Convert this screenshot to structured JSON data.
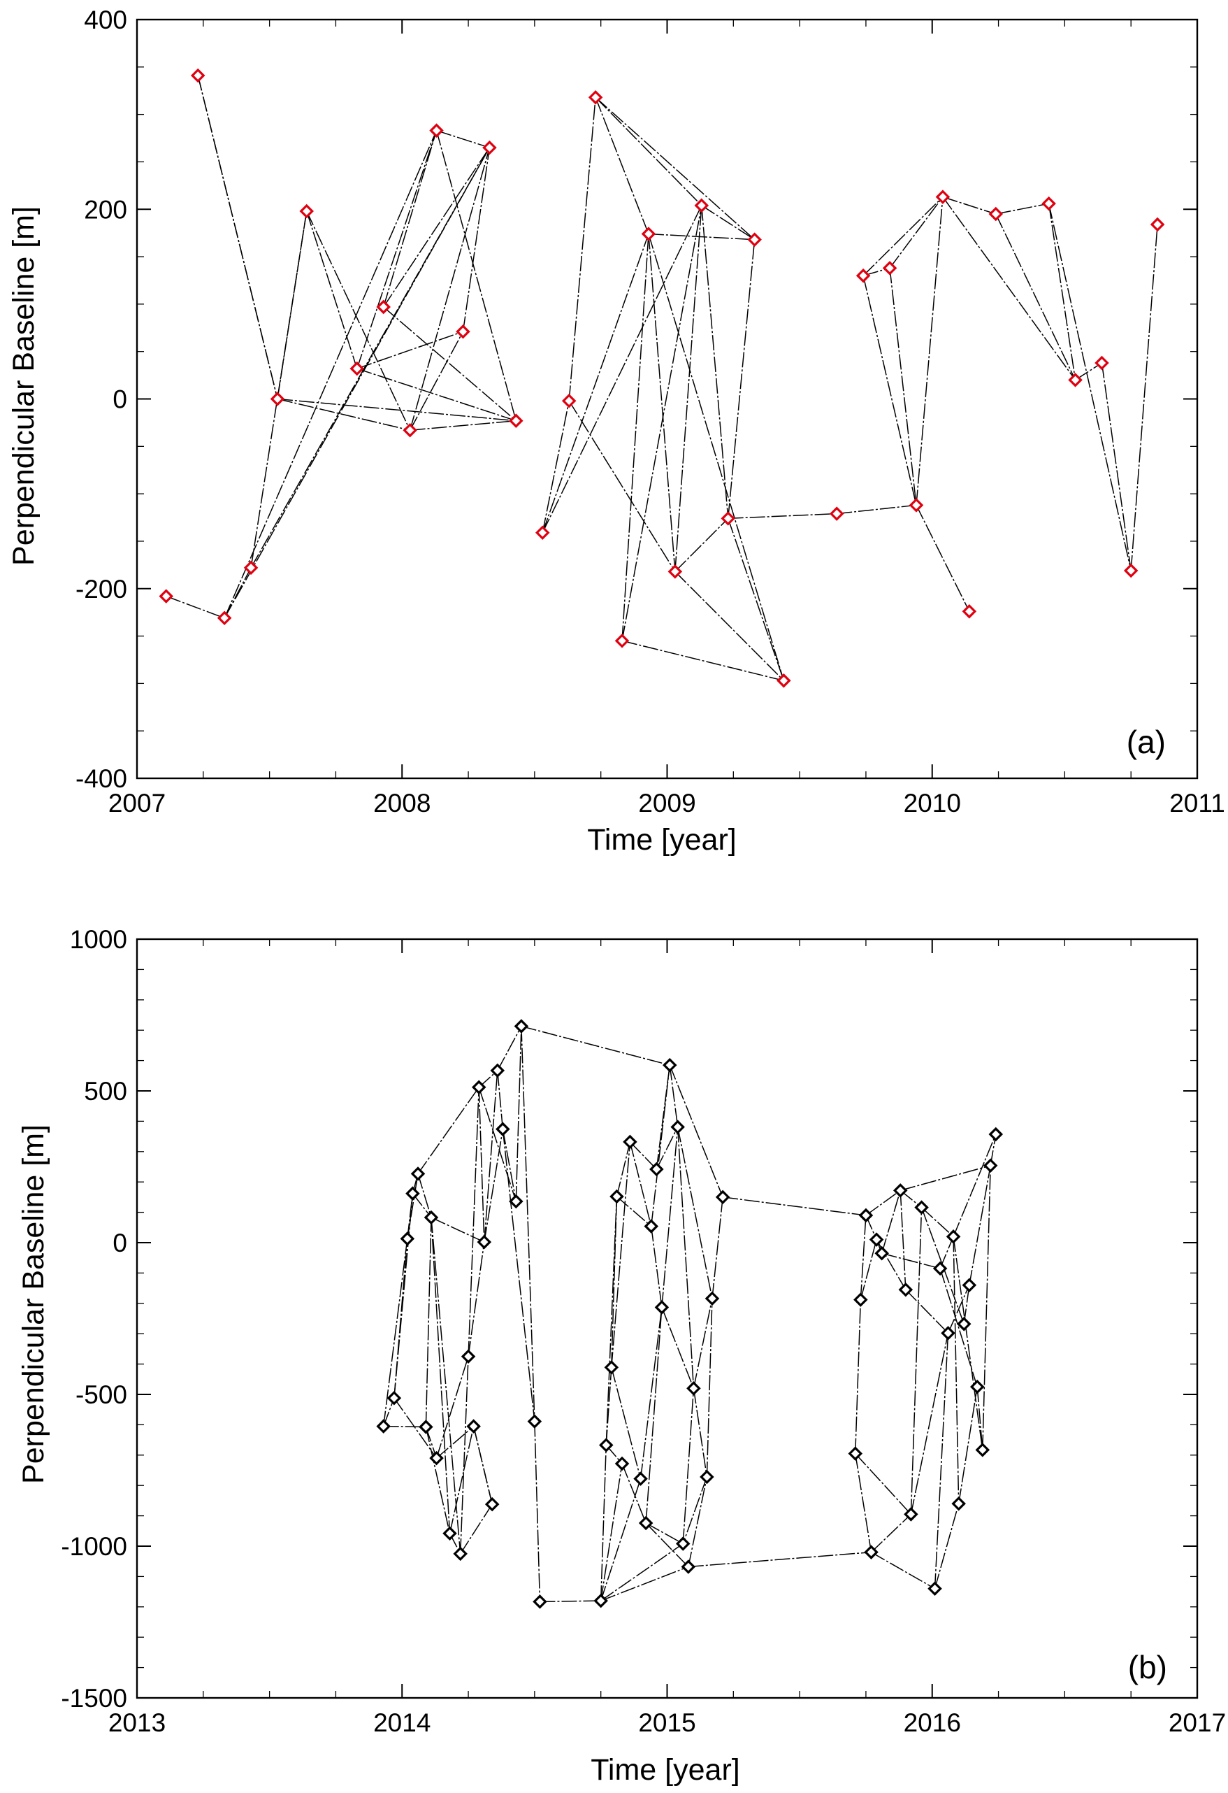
{
  "chart_data": [
    {
      "id": "a",
      "type": "scatter",
      "panel_label": "(a)",
      "xlabel": "Time [year]",
      "ylabel": "Perpendicular Baseline [m]",
      "xlim": [
        2007,
        2011
      ],
      "ylim": [
        -400,
        400
      ],
      "xticks": [
        2007,
        2008,
        2009,
        2010,
        2011
      ],
      "yticks": [
        -400,
        -200,
        0,
        200,
        400
      ],
      "x_minor": 4,
      "y_minor": 4,
      "marker_color": "#e0000f",
      "edge_color": "#000000",
      "points": [
        {
          "x": 2007.11,
          "y": -208
        },
        {
          "x": 2007.23,
          "y": 341
        },
        {
          "x": 2007.33,
          "y": -231
        },
        {
          "x": 2007.43,
          "y": -178
        },
        {
          "x": 2007.53,
          "y": 0
        },
        {
          "x": 2007.64,
          "y": 198
        },
        {
          "x": 2007.83,
          "y": 32
        },
        {
          "x": 2007.93,
          "y": 97
        },
        {
          "x": 2008.03,
          "y": -33
        },
        {
          "x": 2008.13,
          "y": 283
        },
        {
          "x": 2008.23,
          "y": 71
        },
        {
          "x": 2008.33,
          "y": 265
        },
        {
          "x": 2008.43,
          "y": -23
        },
        {
          "x": 2008.53,
          "y": -141
        },
        {
          "x": 2008.63,
          "y": -2
        },
        {
          "x": 2008.73,
          "y": 318
        },
        {
          "x": 2008.83,
          "y": -255
        },
        {
          "x": 2008.93,
          "y": 174
        },
        {
          "x": 2009.03,
          "y": -182
        },
        {
          "x": 2009.13,
          "y": 204
        },
        {
          "x": 2009.23,
          "y": -126
        },
        {
          "x": 2009.33,
          "y": 168
        },
        {
          "x": 2009.44,
          "y": -297
        },
        {
          "x": 2009.64,
          "y": -121
        },
        {
          "x": 2009.74,
          "y": 130
        },
        {
          "x": 2009.84,
          "y": 138
        },
        {
          "x": 2009.94,
          "y": -112
        },
        {
          "x": 2010.04,
          "y": 213
        },
        {
          "x": 2010.14,
          "y": -224
        },
        {
          "x": 2010.24,
          "y": 195
        },
        {
          "x": 2010.44,
          "y": 206
        },
        {
          "x": 2010.54,
          "y": 20
        },
        {
          "x": 2010.64,
          "y": 38
        },
        {
          "x": 2010.75,
          "y": -181
        },
        {
          "x": 2010.85,
          "y": 184
        }
      ],
      "edges": [
        [
          0,
          2
        ],
        [
          1,
          4
        ],
        [
          2,
          3
        ],
        [
          3,
          5
        ],
        [
          3,
          11
        ],
        [
          4,
          5
        ],
        [
          4,
          8
        ],
        [
          4,
          12
        ],
        [
          5,
          6
        ],
        [
          5,
          8
        ],
        [
          6,
          9
        ],
        [
          6,
          10
        ],
        [
          6,
          12
        ],
        [
          7,
          9
        ],
        [
          7,
          11
        ],
        [
          7,
          12
        ],
        [
          8,
          10
        ],
        [
          8,
          11
        ],
        [
          8,
          12
        ],
        [
          9,
          11
        ],
        [
          9,
          12
        ],
        [
          13,
          14
        ],
        [
          14,
          15
        ],
        [
          13,
          17
        ],
        [
          13,
          19
        ],
        [
          14,
          18
        ],
        [
          15,
          17
        ],
        [
          15,
          21
        ],
        [
          15,
          19
        ],
        [
          16,
          17
        ],
        [
          16,
          19
        ],
        [
          16,
          22
        ],
        [
          17,
          18
        ],
        [
          17,
          21
        ],
        [
          17,
          22
        ],
        [
          18,
          19
        ],
        [
          18,
          20
        ],
        [
          18,
          22
        ],
        [
          19,
          21
        ],
        [
          19,
          20
        ],
        [
          20,
          22
        ],
        [
          20,
          21
        ],
        [
          20,
          23
        ],
        [
          23,
          26
        ],
        [
          24,
          25
        ],
        [
          24,
          26
        ],
        [
          24,
          27
        ],
        [
          25,
          26
        ],
        [
          25,
          27
        ],
        [
          26,
          27
        ],
        [
          26,
          28
        ],
        [
          27,
          29
        ],
        [
          27,
          31
        ],
        [
          29,
          30
        ],
        [
          29,
          31
        ],
        [
          30,
          31
        ],
        [
          30,
          33
        ],
        [
          31,
          32
        ],
        [
          32,
          33
        ],
        [
          33,
          34
        ],
        [
          2,
          11
        ],
        [
          2,
          9
        ],
        [
          1,
          4
        ],
        [
          10,
          11
        ]
      ]
    },
    {
      "id": "b",
      "type": "scatter",
      "panel_label": "(b)",
      "xlabel": "Time [year]",
      "ylabel": "Perpendicular Baseline [m]",
      "xlim": [
        2013,
        2017
      ],
      "ylim": [
        -1500,
        1000
      ],
      "xticks": [
        2013,
        2014,
        2015,
        2016,
        2017
      ],
      "yticks": [
        -1500,
        -1000,
        -500,
        0,
        500,
        1000
      ],
      "x_minor": 4,
      "y_minor": 5,
      "marker_color": "#000000",
      "edge_color": "#000000",
      "points": [
        {
          "x": 2013.93,
          "y": -605
        },
        {
          "x": 2013.97,
          "y": -512
        },
        {
          "x": 2014.02,
          "y": 13
        },
        {
          "x": 2014.04,
          "y": 162
        },
        {
          "x": 2014.06,
          "y": 227
        },
        {
          "x": 2014.09,
          "y": -607
        },
        {
          "x": 2014.11,
          "y": 83
        },
        {
          "x": 2014.13,
          "y": -710
        },
        {
          "x": 2014.18,
          "y": -958
        },
        {
          "x": 2014.22,
          "y": -1025
        },
        {
          "x": 2014.25,
          "y": -375
        },
        {
          "x": 2014.27,
          "y": -605
        },
        {
          "x": 2014.29,
          "y": 512
        },
        {
          "x": 2014.31,
          "y": 2
        },
        {
          "x": 2014.34,
          "y": -862
        },
        {
          "x": 2014.36,
          "y": 567
        },
        {
          "x": 2014.38,
          "y": 374
        },
        {
          "x": 2014.43,
          "y": 136
        },
        {
          "x": 2014.45,
          "y": 713
        },
        {
          "x": 2014.5,
          "y": -589
        },
        {
          "x": 2014.52,
          "y": -1183
        },
        {
          "x": 2014.75,
          "y": -1180
        },
        {
          "x": 2014.77,
          "y": -667
        },
        {
          "x": 2014.79,
          "y": -411
        },
        {
          "x": 2014.81,
          "y": 152
        },
        {
          "x": 2014.83,
          "y": -728
        },
        {
          "x": 2014.86,
          "y": 332
        },
        {
          "x": 2014.9,
          "y": -778
        },
        {
          "x": 2014.92,
          "y": -924
        },
        {
          "x": 2014.94,
          "y": 54
        },
        {
          "x": 2014.96,
          "y": 242
        },
        {
          "x": 2014.98,
          "y": -213
        },
        {
          "x": 2015.01,
          "y": 585
        },
        {
          "x": 2015.04,
          "y": 381
        },
        {
          "x": 2015.06,
          "y": -992
        },
        {
          "x": 2015.08,
          "y": -1068
        },
        {
          "x": 2015.1,
          "y": -480
        },
        {
          "x": 2015.15,
          "y": -772
        },
        {
          "x": 2015.17,
          "y": -184
        },
        {
          "x": 2015.21,
          "y": 150
        },
        {
          "x": 2015.71,
          "y": -695
        },
        {
          "x": 2015.73,
          "y": -188
        },
        {
          "x": 2015.75,
          "y": 90
        },
        {
          "x": 2015.77,
          "y": -1020
        },
        {
          "x": 2015.79,
          "y": 10
        },
        {
          "x": 2015.81,
          "y": -35
        },
        {
          "x": 2015.88,
          "y": 172
        },
        {
          "x": 2015.9,
          "y": -155
        },
        {
          "x": 2015.92,
          "y": -895
        },
        {
          "x": 2015.96,
          "y": 116
        },
        {
          "x": 2016.01,
          "y": -1140
        },
        {
          "x": 2016.03,
          "y": -85
        },
        {
          "x": 2016.06,
          "y": -298
        },
        {
          "x": 2016.08,
          "y": 20
        },
        {
          "x": 2016.1,
          "y": -860
        },
        {
          "x": 2016.12,
          "y": -268
        },
        {
          "x": 2016.14,
          "y": -140
        },
        {
          "x": 2016.17,
          "y": -475
        },
        {
          "x": 2016.19,
          "y": -683
        },
        {
          "x": 2016.22,
          "y": 254
        },
        {
          "x": 2016.24,
          "y": 357
        }
      ],
      "edges": [
        [
          0,
          1
        ],
        [
          0,
          2
        ],
        [
          0,
          5
        ],
        [
          1,
          2
        ],
        [
          1,
          3
        ],
        [
          1,
          7
        ],
        [
          2,
          3
        ],
        [
          2,
          4
        ],
        [
          3,
          4
        ],
        [
          3,
          6
        ],
        [
          4,
          12
        ],
        [
          4,
          6
        ],
        [
          5,
          6
        ],
        [
          5,
          7
        ],
        [
          5,
          8
        ],
        [
          6,
          8
        ],
        [
          6,
          9
        ],
        [
          6,
          13
        ],
        [
          7,
          10
        ],
        [
          7,
          11
        ],
        [
          8,
          9
        ],
        [
          8,
          11
        ],
        [
          9,
          10
        ],
        [
          9,
          14
        ],
        [
          10,
          13
        ],
        [
          10,
          12
        ],
        [
          11,
          14
        ],
        [
          12,
          15
        ],
        [
          12,
          13
        ],
        [
          13,
          15
        ],
        [
          13,
          16
        ],
        [
          14,
          11
        ],
        [
          15,
          18
        ],
        [
          15,
          16
        ],
        [
          16,
          17
        ],
        [
          16,
          19
        ],
        [
          17,
          18
        ],
        [
          18,
          19
        ],
        [
          18,
          32
        ],
        [
          19,
          20
        ],
        [
          20,
          21
        ],
        [
          21,
          22
        ],
        [
          21,
          25
        ],
        [
          21,
          27
        ],
        [
          21,
          34
        ],
        [
          21,
          35
        ],
        [
          22,
          23
        ],
        [
          22,
          25
        ],
        [
          23,
          24
        ],
        [
          23,
          26
        ],
        [
          23,
          27
        ],
        [
          24,
          26
        ],
        [
          24,
          29
        ],
        [
          25,
          28
        ],
        [
          26,
          29
        ],
        [
          26,
          30
        ],
        [
          27,
          31
        ],
        [
          28,
          31
        ],
        [
          28,
          34
        ],
        [
          29,
          31
        ],
        [
          29,
          32
        ],
        [
          30,
          32
        ],
        [
          30,
          33
        ],
        [
          31,
          33
        ],
        [
          31,
          36
        ],
        [
          32,
          39
        ],
        [
          32,
          33
        ],
        [
          33,
          36
        ],
        [
          33,
          38
        ],
        [
          34,
          36
        ],
        [
          35,
          37
        ],
        [
          35,
          43
        ],
        [
          36,
          38
        ],
        [
          37,
          38
        ],
        [
          37,
          34
        ],
        [
          38,
          39
        ],
        [
          39,
          42
        ],
        [
          40,
          41
        ],
        [
          40,
          43
        ],
        [
          40,
          48
        ],
        [
          41,
          42
        ],
        [
          41,
          44
        ],
        [
          42,
          44
        ],
        [
          42,
          46
        ],
        [
          43,
          48
        ],
        [
          43,
          50
        ],
        [
          44,
          45
        ],
        [
          44,
          47
        ],
        [
          45,
          46
        ],
        [
          45,
          51
        ],
        [
          46,
          47
        ],
        [
          46,
          49
        ],
        [
          46,
          59
        ],
        [
          47,
          52
        ],
        [
          48,
          49
        ],
        [
          48,
          52
        ],
        [
          49,
          53
        ],
        [
          49,
          55
        ],
        [
          50,
          54
        ],
        [
          50,
          52
        ],
        [
          51,
          53
        ],
        [
          51,
          57
        ],
        [
          52,
          56
        ],
        [
          53,
          54
        ],
        [
          53,
          58
        ],
        [
          53,
          60
        ],
        [
          54,
          57
        ],
        [
          55,
          56
        ],
        [
          56,
          59
        ],
        [
          57,
          58
        ],
        [
          58,
          59
        ],
        [
          59,
          60
        ],
        [
          36,
          37
        ],
        [
          28,
          35
        ],
        [
          22,
          24
        ],
        [
          12,
          17
        ]
      ]
    }
  ]
}
